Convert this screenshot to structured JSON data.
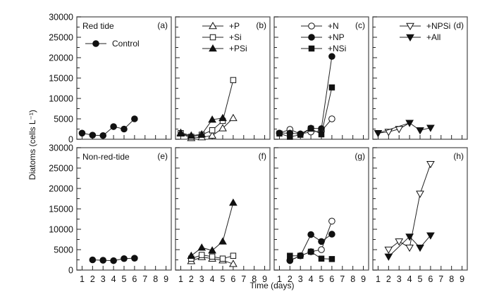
{
  "chart_data": {
    "type": "line",
    "layout": "2x4 panel grid",
    "ylabel": "Diatoms (cells L⁻¹)",
    "xlabel": "Time (days)",
    "xlim": [
      0.5,
      9.5
    ],
    "ylim": [
      0,
      30000
    ],
    "xticks": [
      1,
      2,
      3,
      4,
      5,
      6,
      7,
      8,
      9
    ],
    "yticks": [
      0,
      5000,
      10000,
      15000,
      20000,
      25000,
      30000
    ],
    "y_minor_step": 2500,
    "grid": false,
    "row_titles": [
      "Red tide",
      "Non-red-tide"
    ],
    "panels": [
      {
        "label": "(a)",
        "row": 0,
        "col": 0,
        "title": "Red tide",
        "legend": [
          {
            "name": "Control",
            "marker": "circle-filled"
          }
        ],
        "series": [
          {
            "name": "Control",
            "marker": "circle-filled",
            "x": [
              1,
              2,
              3,
              4,
              5,
              6
            ],
            "y": [
              1500,
              1000,
              900,
              3100,
              2500,
              5000
            ]
          }
        ]
      },
      {
        "label": "(b)",
        "row": 0,
        "col": 1,
        "title": "",
        "legend": [
          {
            "name": "+P",
            "marker": "triangle-up-open"
          },
          {
            "name": "+Si",
            "marker": "square-open"
          },
          {
            "name": "+PSi",
            "marker": "triangle-up-filled"
          }
        ],
        "series": [
          {
            "name": "+P",
            "marker": "triangle-up-open",
            "x": [
              1,
              2,
              3,
              4,
              5,
              6
            ],
            "y": [
              1400,
              300,
              500,
              900,
              2700,
              5200
            ]
          },
          {
            "name": "+Si",
            "marker": "square-open",
            "x": [
              1,
              2,
              3,
              4,
              5,
              6
            ],
            "y": [
              1500,
              600,
              1100,
              2200,
              4500,
              14500
            ]
          },
          {
            "name": "+PSi",
            "marker": "triangle-up-filled",
            "x": [
              1,
              2,
              3,
              4,
              5
            ],
            "y": [
              1600,
              900,
              1200,
              4800,
              5200
            ]
          }
        ]
      },
      {
        "label": "(c)",
        "row": 0,
        "col": 2,
        "title": "",
        "legend": [
          {
            "name": "+N",
            "marker": "circle-open"
          },
          {
            "name": "+NP",
            "marker": "circle-filled"
          },
          {
            "name": "+NSi",
            "marker": "square-filled"
          }
        ],
        "series": [
          {
            "name": "+N",
            "marker": "circle-open",
            "x": [
              1,
              2,
              3,
              4,
              5,
              6
            ],
            "y": [
              1500,
              2400,
              1300,
              1800,
              2000,
              5000
            ]
          },
          {
            "name": "+NP",
            "marker": "circle-filled",
            "x": [
              1,
              2,
              3,
              4,
              5,
              6
            ],
            "y": [
              1500,
              1500,
              1300,
              2700,
              2600,
              20300
            ]
          },
          {
            "name": "+NSi",
            "marker": "square-filled",
            "x": [
              1,
              2,
              3,
              4,
              5,
              6
            ],
            "y": [
              1400,
              600,
              1100,
              2600,
              1200,
              12700
            ]
          }
        ]
      },
      {
        "label": "(d)",
        "row": 0,
        "col": 3,
        "title": "",
        "legend": [
          {
            "name": "+NPSi",
            "marker": "triangle-down-open"
          },
          {
            "name": "+All",
            "marker": "triangle-down-filled"
          }
        ],
        "series": [
          {
            "name": "+NPSi",
            "marker": "triangle-down-open",
            "x": [
              1,
              2,
              3,
              4
            ],
            "y": [
              1500,
              1800,
              2500,
              4000
            ],
            "marker_points": [
              2,
              3
            ]
          },
          {
            "name": "+All",
            "marker": "triangle-down-filled",
            "x": [
              1,
              4,
              5,
              6
            ],
            "y": [
              1500,
              4000,
              2200,
              2800
            ]
          }
        ]
      },
      {
        "label": "(e)",
        "row": 1,
        "col": 0,
        "title": "Non-red-tide",
        "legend": [],
        "series": [
          {
            "name": "Control",
            "marker": "circle-filled",
            "x": [
              2,
              3,
              4,
              5,
              6
            ],
            "y": [
              2500,
              2400,
              2300,
              2800,
              2900
            ]
          }
        ]
      },
      {
        "label": "(f)",
        "row": 1,
        "col": 1,
        "title": "",
        "legend": [],
        "series": [
          {
            "name": "+P",
            "marker": "triangle-up-open",
            "x": [
              2,
              3,
              4,
              5,
              6
            ],
            "y": [
              2200,
              3200,
              2800,
              2400,
              1500
            ]
          },
          {
            "name": "+Si",
            "marker": "square-open",
            "x": [
              2,
              3,
              4,
              5,
              6
            ],
            "y": [
              2800,
              3700,
              3300,
              2800,
              3500
            ]
          },
          {
            "name": "+PSi",
            "marker": "triangle-up-filled",
            "x": [
              2,
              3,
              4,
              5,
              6
            ],
            "y": [
              3500,
              5500,
              4800,
              7000,
              16500
            ]
          }
        ]
      },
      {
        "label": "(g)",
        "row": 1,
        "col": 2,
        "title": "",
        "legend": [],
        "series": [
          {
            "name": "+N",
            "marker": "circle-open",
            "x": [
              2,
              3,
              4,
              5,
              6
            ],
            "y": [
              2400,
              3500,
              4500,
              5000,
              12000
            ]
          },
          {
            "name": "+NP",
            "marker": "circle-filled",
            "x": [
              2,
              3,
              4,
              5,
              6
            ],
            "y": [
              2300,
              3500,
              8700,
              7000,
              8800
            ]
          },
          {
            "name": "+NSi",
            "marker": "square-filled",
            "x": [
              2,
              3,
              4,
              5,
              6
            ],
            "y": [
              3500,
              3500,
              4500,
              2800,
              2700
            ]
          }
        ]
      },
      {
        "label": "(h)",
        "row": 1,
        "col": 3,
        "title": "",
        "legend": [],
        "series": [
          {
            "name": "+NPSi",
            "marker": "triangle-down-open",
            "x": [
              2,
              3,
              4,
              5,
              6
            ],
            "y": [
              5000,
              7000,
              5500,
              18700,
              26000
            ]
          },
          {
            "name": "+All",
            "marker": "triangle-down-filled",
            "x": [
              2,
              4,
              5,
              6
            ],
            "y": [
              3300,
              8200,
              5500,
              8500
            ]
          }
        ]
      }
    ]
  }
}
